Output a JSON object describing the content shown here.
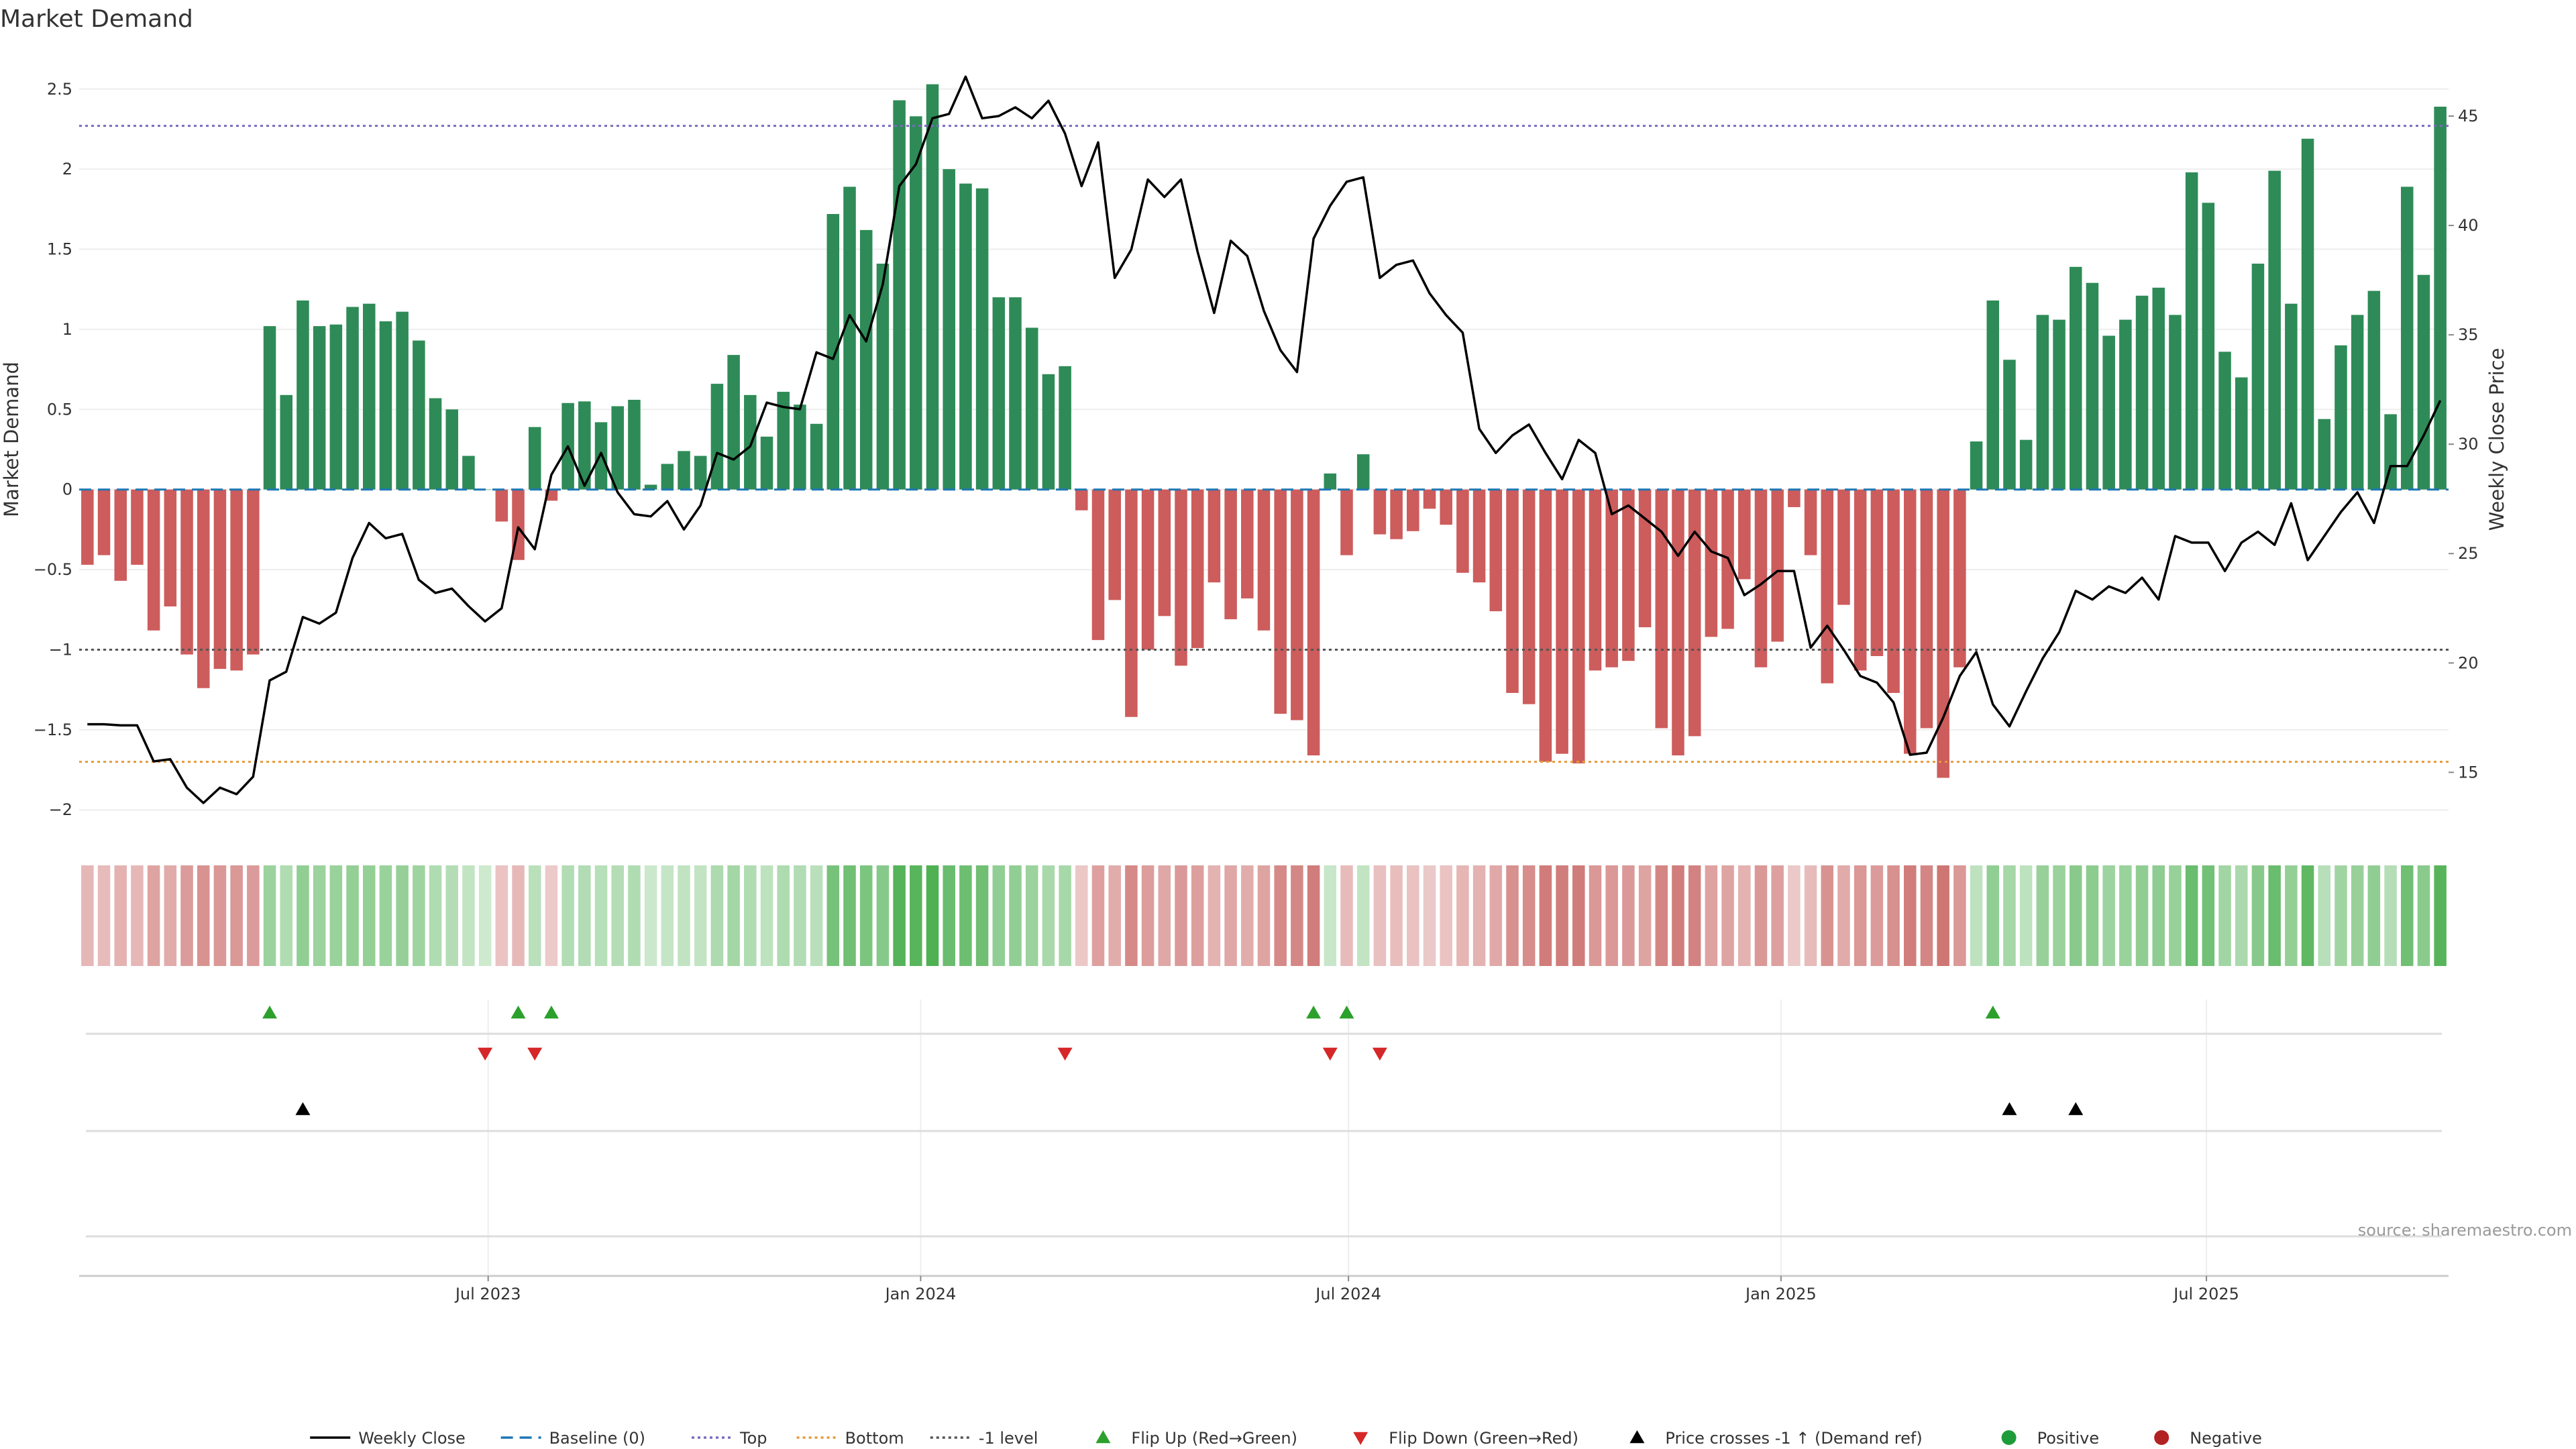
{
  "chart_data": {
    "type": "bar",
    "title": "Market Demand",
    "ylabel": "Market Demand",
    "y2label": "Weekly Close Price",
    "ylim": [
      -2.2,
      2.7
    ],
    "y2lim": [
      11.82,
      47.7
    ],
    "yticks": [
      -2,
      -1.5,
      -1,
      -0.5,
      0,
      0.5,
      1,
      1.5,
      2,
      2.5
    ],
    "ytick_labels": [
      "−2",
      "−1.5",
      "−1",
      "−0.5",
      "0",
      "0.5",
      "1",
      "1.5",
      "2",
      "2.5"
    ],
    "y2ticks": [
      15,
      20,
      25,
      30,
      35,
      40,
      45
    ],
    "y2tick_labels": [
      "15",
      "20",
      "25",
      "30",
      "35",
      "40",
      "45"
    ],
    "x_start": "2023-01-08",
    "x_end": "2025-10-12",
    "xticks": [
      "2023-07-01",
      "2024-01-01",
      "2024-07-01",
      "2025-01-01",
      "2025-07-01"
    ],
    "xtick_labels": [
      "Jul 2023",
      "Jan 2024",
      "Jul 2024",
      "Jan 2025",
      "Jul 2025"
    ],
    "weeks_count": 143,
    "levels": {
      "top": 2.27,
      "bottom": -1.7,
      "minus_one": -1
    },
    "source": "source: sharemaestro.com",
    "series": [
      {
        "name": "Market Demand",
        "kind": "bar",
        "values": [
          -0.47,
          -0.41,
          -0.57,
          -0.47,
          -0.88,
          -0.73,
          -1.03,
          -1.24,
          -1.12,
          -1.13,
          -1.03,
          1.02,
          0.59,
          1.18,
          1.02,
          1.03,
          1.14,
          1.16,
          1.05,
          1.11,
          0.93,
          0.57,
          0.5,
          0.21,
          0,
          -0.2,
          -0.44,
          0.39,
          -0.07,
          0.54,
          0.55,
          0.42,
          0.52,
          0.56,
          0.03,
          0.16,
          0.24,
          0.21,
          0.66,
          0.84,
          0.59,
          0.33,
          0.61,
          0.53,
          0.41,
          1.72,
          1.89,
          1.62,
          1.41,
          2.43,
          2.33,
          2.53,
          2.0,
          1.91,
          1.88,
          1.2,
          1.2,
          1.01,
          0.72,
          0.77,
          -0.13,
          -0.94,
          -0.69,
          -1.42,
          -1.0,
          -0.79,
          -1.1,
          -0.99,
          -0.58,
          -0.81,
          -0.68,
          -0.88,
          -1.4,
          -1.44,
          -1.66,
          0.1,
          -0.41,
          0.22,
          -0.28,
          -0.31,
          -0.26,
          -0.12,
          -0.22,
          -0.52,
          -0.58,
          -0.76,
          -1.27,
          -1.34,
          -1.7,
          -1.65,
          -1.71,
          -1.13,
          -1.11,
          -1.07,
          -0.86,
          -1.49,
          -1.66,
          -1.54,
          -0.92,
          -0.87,
          -0.56,
          -1.11,
          -0.95,
          -0.11,
          -0.41,
          -1.21,
          -0.72,
          -1.13,
          -1.04,
          -1.27,
          -1.65,
          -1.49,
          -1.8,
          -1.11,
          0.3,
          1.18,
          0.81,
          0.31,
          1.09,
          1.06,
          1.39,
          1.29,
          0.96,
          1.06,
          1.21,
          1.26,
          1.09,
          1.98,
          1.79,
          0.86,
          0.7,
          1.41,
          1.99,
          1.16,
          2.19,
          0.44,
          0.9,
          1.09,
          1.24,
          0.47,
          1.89,
          1.34,
          2.39
        ]
      },
      {
        "name": "Weekly Close",
        "kind": "line",
        "axis": "right",
        "values": [
          17.2,
          17.2,
          17.15,
          17.15,
          15.5,
          15.6,
          14.3,
          13.6,
          14.3,
          14.0,
          14.8,
          19.2,
          19.6,
          22.1,
          21.8,
          22.3,
          24.8,
          26.4,
          25.7,
          25.9,
          23.8,
          23.2,
          23.4,
          22.6,
          21.9,
          22.5,
          26.2,
          25.2,
          28.6,
          29.9,
          28.1,
          29.6,
          27.8,
          26.8,
          26.7,
          27.4,
          26.1,
          27.2,
          29.6,
          29.3,
          29.9,
          31.9,
          31.7,
          31.6,
          34.2,
          33.9,
          35.9,
          34.7,
          37.3,
          41.8,
          42.8,
          44.9,
          45.1,
          46.8,
          44.9,
          45.0,
          45.4,
          44.9,
          45.7,
          44.2,
          41.8,
          43.8,
          37.6,
          38.9,
          42.1,
          41.3,
          42.1,
          38.8,
          36.0,
          39.3,
          38.6,
          36.1,
          34.3,
          33.3,
          39.4,
          40.9,
          42.0,
          42.2,
          37.6,
          38.2,
          38.4,
          36.9,
          35.9,
          35.1,
          30.7,
          29.6,
          30.4,
          30.9,
          29.6,
          28.4,
          30.2,
          29.6,
          26.8,
          27.2,
          26.6,
          26.0,
          24.9,
          26.0,
          25.1,
          24.8,
          23.1,
          23.6,
          24.2,
          24.2,
          20.7,
          21.7,
          20.6,
          19.4,
          19.1,
          18.2,
          15.8,
          15.9,
          17.5,
          19.4,
          20.5,
          18.1,
          17.1,
          18.7,
          20.2,
          21.4,
          23.3,
          22.9,
          23.5,
          23.2,
          23.9,
          22.9,
          25.8,
          25.5,
          25.5,
          24.2,
          25.5,
          26.0,
          25.4,
          27.3,
          24.7,
          25.8,
          26.9,
          27.8,
          26.4,
          29.0,
          29.0,
          30.4,
          32.0
        ]
      }
    ],
    "signals": {
      "flip_up": [
        11,
        26,
        28,
        74,
        76,
        115
      ],
      "flip_down": [
        24,
        27,
        59,
        75,
        78
      ],
      "price_cross": [
        13,
        116,
        120
      ]
    },
    "legend": [
      {
        "label": "Weekly Close",
        "kind": "line",
        "color": "#000000"
      },
      {
        "label": "Baseline (0)",
        "kind": "dash",
        "color": "#1f77b4"
      },
      {
        "label": "Top",
        "kind": "dot",
        "color": "#7b6bbd"
      },
      {
        "label": "Bottom",
        "kind": "dot",
        "color": "#e69b3a"
      },
      {
        "label": "-1 level",
        "kind": "dot",
        "color": "#555555"
      },
      {
        "label": "Flip Up (Red→Green)",
        "kind": "tri-up",
        "color": "#2ca02c"
      },
      {
        "label": "Flip Down (Green→Red)",
        "kind": "tri-down",
        "color": "#d62728"
      },
      {
        "label": "Price crosses -1 ↑ (Demand ref)",
        "kind": "tri-up",
        "color": "#000000"
      },
      {
        "label": "Positive",
        "kind": "circle",
        "color": "#1f9c3a"
      },
      {
        "label": "Negative",
        "kind": "circle",
        "color": "#b22222"
      }
    ],
    "colors": {
      "positive_bar": "#2e8b57",
      "negative_bar": "#cd5c5c",
      "price_line": "#000000",
      "baseline": "#1f77b4",
      "top": "#7b6bbd",
      "bottom": "#e69b3a",
      "minus_one": "#555555",
      "heat_positive": "#4caf50",
      "heat_negative": "#c0504d",
      "flip_up": "#2ca02c",
      "flip_down": "#d62728",
      "price_cross": "#000000"
    }
  }
}
